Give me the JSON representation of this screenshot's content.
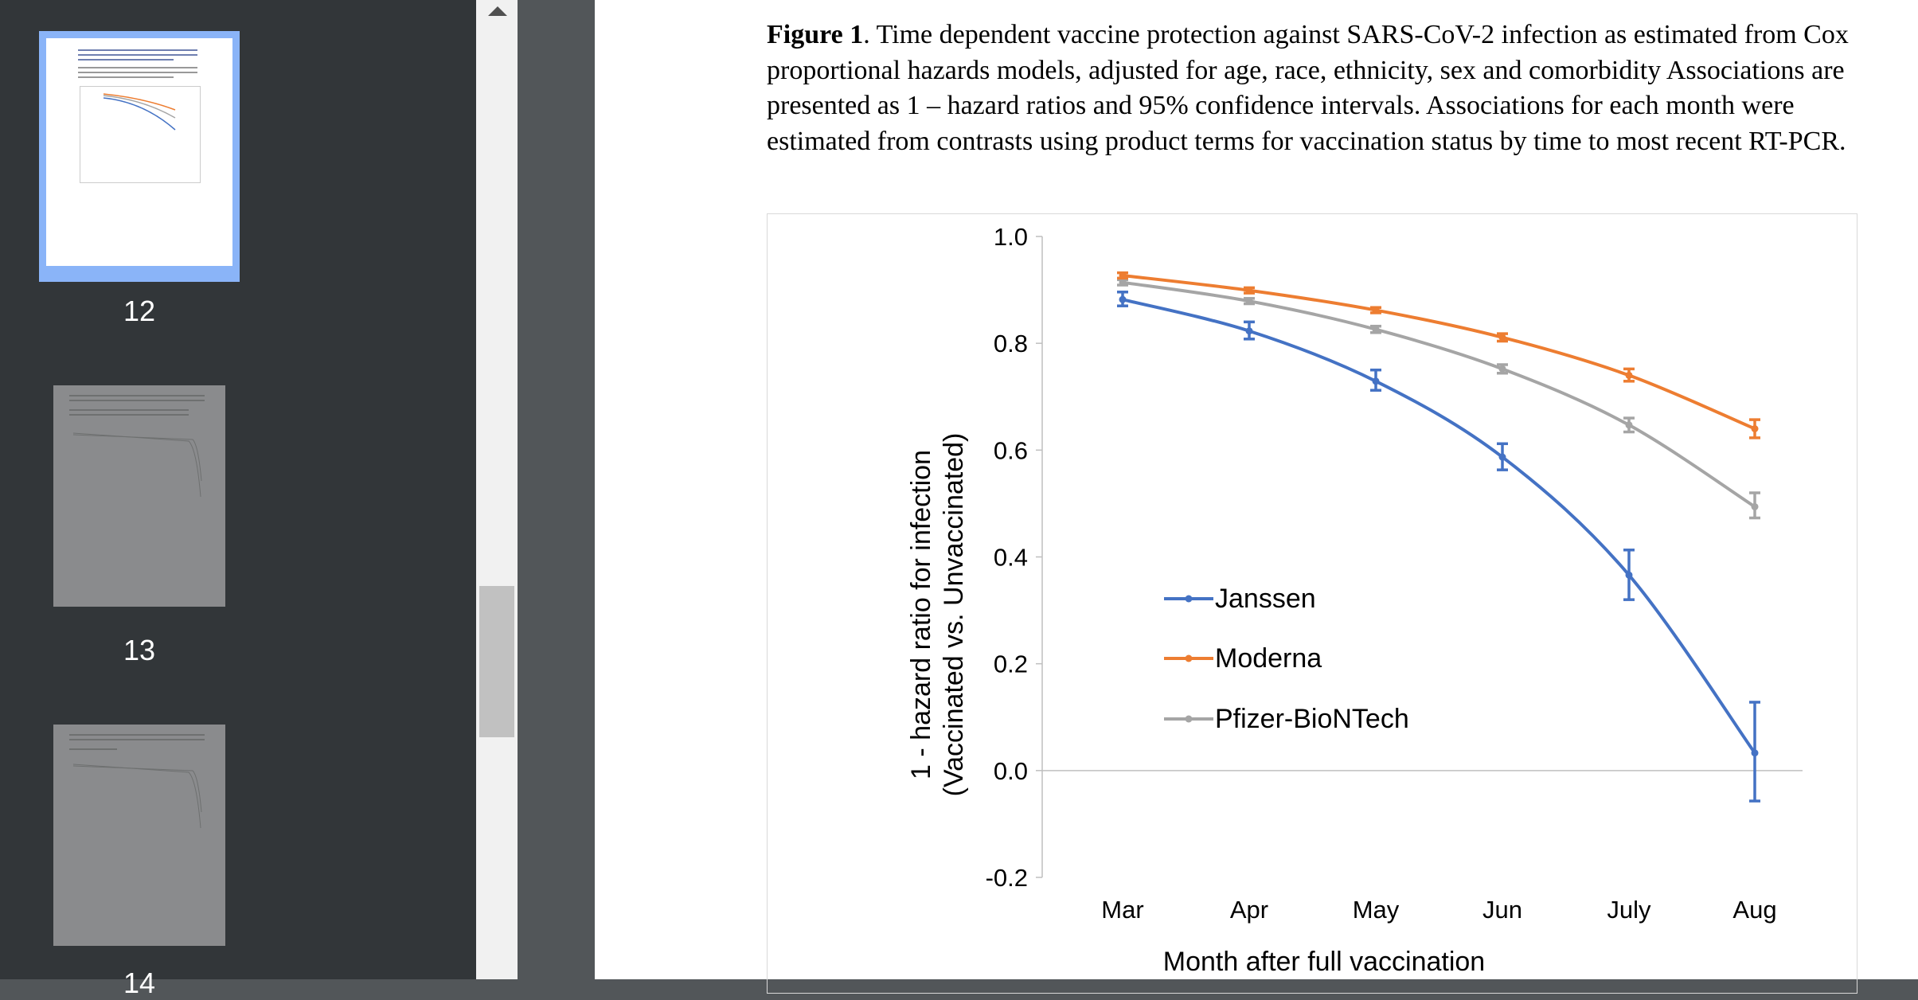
{
  "sidebar": {
    "thumbnails": [
      {
        "page_number": "12",
        "selected": true
      },
      {
        "page_number": "13",
        "selected": false
      },
      {
        "page_number": "14",
        "selected": false
      }
    ]
  },
  "document": {
    "caption_bold": "Figure 1",
    "caption_text": ". Time dependent vaccine protection against SARS-CoV-2 infection as estimated from Cox proportional hazards models, adjusted for age, race, ethnicity, sex and comorbidity Associations are presented as 1 – hazard ratios and 95% confidence intervals. Associations for each month were estimated from contrasts using product terms for vaccination status by time to most recent RT-PCR."
  },
  "chart_data": {
    "type": "line",
    "categories": [
      "Mar",
      "Apr",
      "May",
      "Jun",
      "July",
      "Aug"
    ],
    "ylabel_line1": "1 - hazard ratio for infection",
    "ylabel_line2": "(Vaccinated vs. Unvaccinated)",
    "xlabel": "Month after full vaccination",
    "ylim": [
      -0.2,
      1.0
    ],
    "yticks": [
      -0.2,
      0.0,
      0.2,
      0.4,
      0.6,
      0.8,
      1.0
    ],
    "ytick_labels": [
      "-0.2",
      "0.0",
      "0.2",
      "0.4",
      "0.6",
      "0.8",
      "1.0"
    ],
    "legend_position": "center-left",
    "series": [
      {
        "name": "Janssen",
        "color": "#4472c4",
        "values": [
          0.882,
          0.823,
          0.729,
          0.587,
          0.366,
          0.033
        ],
        "lower": [
          0.87,
          0.808,
          0.712,
          0.563,
          0.32,
          -0.057
        ],
        "upper": [
          0.896,
          0.84,
          0.75,
          0.612,
          0.413,
          0.128
        ]
      },
      {
        "name": "Moderna",
        "color": "#ed7d31",
        "values": [
          0.927,
          0.899,
          0.862,
          0.811,
          0.74,
          0.64
        ],
        "lower": [
          0.922,
          0.894,
          0.857,
          0.804,
          0.729,
          0.623
        ],
        "upper": [
          0.932,
          0.904,
          0.867,
          0.818,
          0.752,
          0.657
        ]
      },
      {
        "name": "Pfizer-BioNTech",
        "color": "#a5a5a5",
        "values": [
          0.914,
          0.879,
          0.826,
          0.752,
          0.647,
          0.494
        ],
        "lower": [
          0.909,
          0.874,
          0.82,
          0.744,
          0.634,
          0.473
        ],
        "upper": [
          0.919,
          0.884,
          0.832,
          0.76,
          0.66,
          0.52
        ]
      }
    ]
  }
}
